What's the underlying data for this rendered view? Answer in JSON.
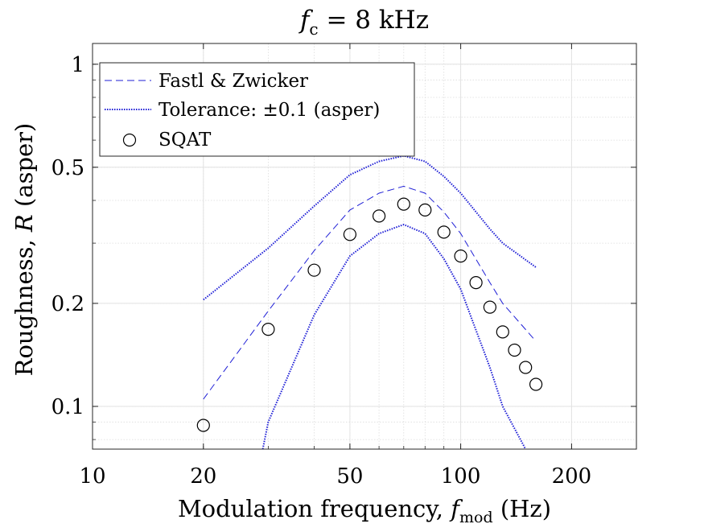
{
  "title": {
    "prefix": "f",
    "subscript": "c",
    "suffix": " = 8 kHz"
  },
  "axes": {
    "xlabel": {
      "prefix": "Modulation frequency, ",
      "var": "f",
      "subscript": "mod",
      "suffix": " (Hz)"
    },
    "ylabel": {
      "prefix": "Roughness, ",
      "var": "R",
      "suffix": " (asper)"
    }
  },
  "chart_data": {
    "type": "line",
    "title": "f_c = 8 kHz",
    "xlabel": "Modulation frequency, f_mod (Hz)",
    "ylabel": "Roughness, R (asper)",
    "xscale": "log",
    "yscale": "log",
    "xlim": [
      10,
      300
    ],
    "ylim": [
      0.075,
      1.15
    ],
    "xticks": [
      10,
      20,
      50,
      100,
      200
    ],
    "xtick_labels": [
      "10",
      "20",
      "50",
      "100",
      "200"
    ],
    "yticks": [
      0.1,
      0.2,
      0.5,
      1
    ],
    "ytick_labels": [
      "0.1",
      "0.2",
      "0.5",
      "1"
    ],
    "grid": true,
    "legend_position": "top-left",
    "series": [
      {
        "name": "Fastl & Zwicker",
        "style": "dashed",
        "color": "#1f1fd6",
        "x": [
          20,
          30,
          40,
          50,
          60,
          70,
          80,
          90,
          100,
          120,
          130,
          160
        ],
        "y": [
          0.105,
          0.19,
          0.285,
          0.375,
          0.42,
          0.44,
          0.42,
          0.37,
          0.32,
          0.23,
          0.2,
          0.155
        ]
      },
      {
        "name": "Tolerance: ±0.1 (asper)",
        "style": "dotted",
        "color": "#1f1fd6",
        "x": [
          20,
          30,
          40,
          50,
          60,
          70,
          80,
          90,
          100,
          120,
          130,
          160
        ],
        "y": [
          0.205,
          0.29,
          0.385,
          0.475,
          0.52,
          0.54,
          0.52,
          0.47,
          0.42,
          0.33,
          0.3,
          0.255
        ]
      },
      {
        "name": "",
        "style": "dotted",
        "color": "#1f1fd6",
        "x": [
          29,
          30,
          40,
          50,
          60,
          70,
          80,
          90,
          100,
          120,
          130,
          150
        ],
        "y": [
          0.075,
          0.09,
          0.185,
          0.275,
          0.32,
          0.34,
          0.32,
          0.27,
          0.22,
          0.13,
          0.1,
          0.075
        ]
      },
      {
        "name": "SQAT",
        "style": "markers-circle",
        "color": "#000000",
        "x": [
          20,
          30,
          40,
          50,
          60,
          70,
          80,
          90,
          100,
          110,
          120,
          130,
          140,
          150,
          160
        ],
        "y": [
          0.088,
          0.168,
          0.25,
          0.318,
          0.36,
          0.39,
          0.375,
          0.323,
          0.275,
          0.23,
          0.195,
          0.165,
          0.146,
          0.13,
          0.116
        ]
      }
    ],
    "legend": [
      "Fastl & Zwicker",
      "Tolerance: ±0.1 (asper)",
      "SQAT"
    ]
  }
}
